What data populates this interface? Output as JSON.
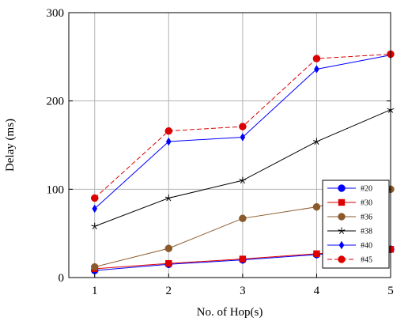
{
  "chart_data": {
    "type": "line",
    "title": "",
    "xlabel": "No. of Hop(s)",
    "ylabel": "Delay (ms)",
    "x": [
      1,
      2,
      3,
      4,
      5
    ],
    "xlim": [
      0.65,
      5
    ],
    "ylim": [
      0,
      300
    ],
    "xticks": [
      "1",
      "2",
      "3",
      "4",
      "5"
    ],
    "yticks": [
      "0",
      "100",
      "200",
      "300"
    ],
    "grid": true,
    "legend_position": "right-middle",
    "series": [
      {
        "name": "#20",
        "values": [
          8,
          15,
          20,
          26,
          32
        ],
        "color": "#0000ff",
        "marker": "circle",
        "dash": "solid"
      },
      {
        "name": "#30",
        "values": [
          10,
          16,
          21,
          27,
          32
        ],
        "color": "#dd0000",
        "marker": "square",
        "dash": "solid"
      },
      {
        "name": "#36",
        "values": [
          12,
          33,
          67,
          80,
          100
        ],
        "color": "#8b5a2b",
        "marker": "circle",
        "dash": "solid"
      },
      {
        "name": "#38",
        "values": [
          58,
          90,
          110,
          154,
          190
        ],
        "color": "#000000",
        "marker": "star",
        "dash": "solid"
      },
      {
        "name": "#40",
        "values": [
          78,
          154,
          159,
          236,
          252
        ],
        "color": "#0000ff",
        "marker": "diamond",
        "dash": "solid"
      },
      {
        "name": "#45",
        "values": [
          90,
          166,
          171,
          248,
          253
        ],
        "color": "#dd0000",
        "marker": "circle",
        "dash": "dashed"
      }
    ]
  }
}
